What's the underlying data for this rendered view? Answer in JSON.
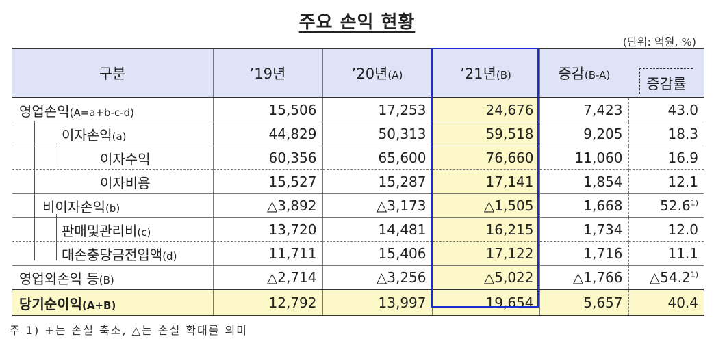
{
  "title": "주요 손익 현황",
  "unit": "(단위: 억원, %)",
  "header": {
    "category": "구분",
    "y19": "’19년",
    "y20": "’20년",
    "y20_sub": "(A)",
    "y21": "’21년",
    "y21_sub": "(B)",
    "change": "증감",
    "change_sub": "(B-A)",
    "rate": "증감률"
  },
  "rows": [
    {
      "label": "영업손익",
      "sub": "(A=a+b-c-d)",
      "y19": "15,506",
      "y20": "17,253",
      "y21": "24,676",
      "chg": "7,423",
      "rate": "43.0",
      "note": ""
    },
    {
      "label": "이자손익",
      "sub": "(a)",
      "y19": "44,829",
      "y20": "50,313",
      "y21": "59,518",
      "chg": "9,205",
      "rate": "18.3",
      "note": ""
    },
    {
      "label": "이자수익",
      "sub": "",
      "y19": "60,356",
      "y20": "65,600",
      "y21": "76,660",
      "chg": "11,060",
      "rate": "16.9",
      "note": ""
    },
    {
      "label": "이자비용",
      "sub": "",
      "y19": "15,527",
      "y20": "15,287",
      "y21": "17,141",
      "chg": "1,854",
      "rate": "12.1",
      "note": ""
    },
    {
      "label": "비이자손익",
      "sub": "(b)",
      "y19": "△3,892",
      "y20": "△3,173",
      "y21": "△1,505",
      "chg": "1,668",
      "rate": "52.6",
      "note": "1)"
    },
    {
      "label": "판매및관리비",
      "sub": "(c)",
      "y19": "13,720",
      "y20": "14,481",
      "y21": "16,215",
      "chg": "1,734",
      "rate": "12.0",
      "note": ""
    },
    {
      "label": "대손충당금전입액",
      "sub": "(d)",
      "y19": "11,711",
      "y20": "15,406",
      "y21": "17,122",
      "chg": "1,716",
      "rate": "11.1",
      "note": ""
    },
    {
      "label": "영업외손익 등",
      "sub": "(B)",
      "y19": "△2,714",
      "y20": "△3,256",
      "y21": "△5,022",
      "chg": "△1,766",
      "rate": "△54.2",
      "note": "1)"
    },
    {
      "label": "당기순이익",
      "sub": "(A+B)",
      "y19": "12,792",
      "y20": "13,997",
      "y21": "19,654",
      "chg": "5,657",
      "rate": "40.4",
      "note": ""
    }
  ],
  "footnote": "주 1) +는 손실 축소, △는 손실 확대를 의미",
  "colors": {
    "header_bg": "#dfe3f7",
    "highlight_bg": "#fcf8c7",
    "frame_blue": "#1a2fd0"
  }
}
